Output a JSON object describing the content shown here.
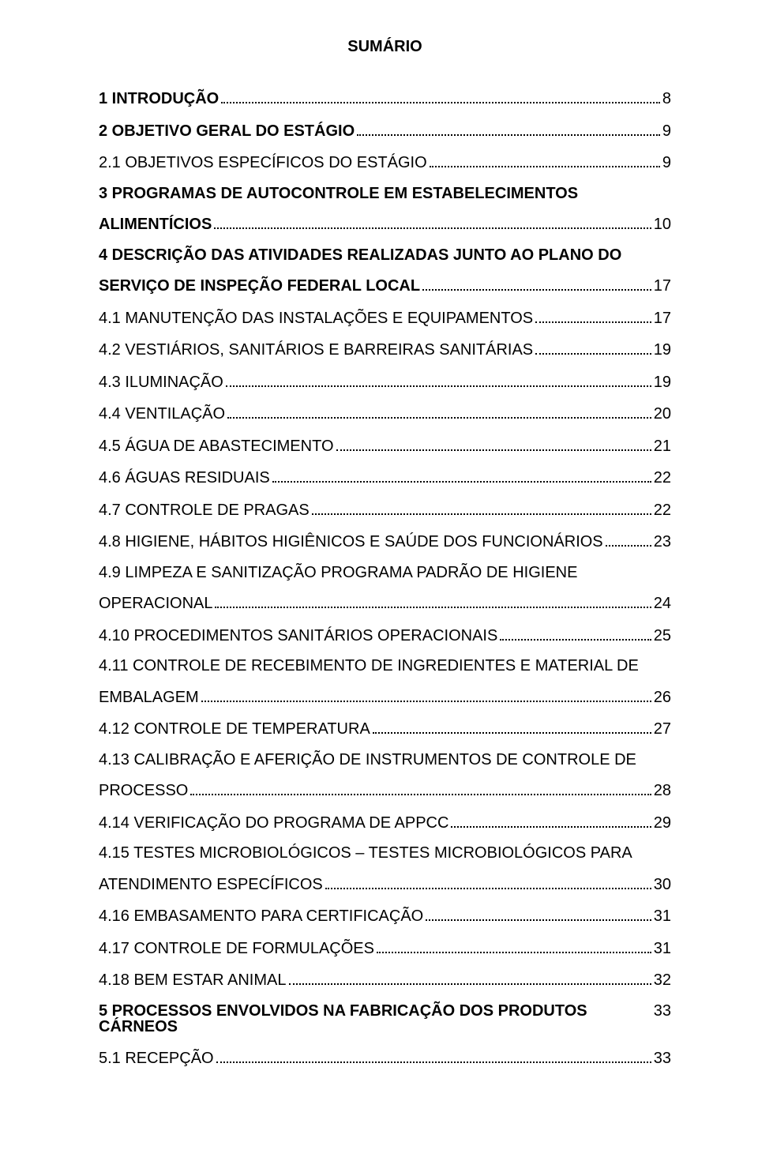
{
  "title": "SUMÁRIO",
  "font": {
    "family": "Arial",
    "title_size_pt": 14,
    "body_size_pt": 14
  },
  "colors": {
    "text": "#000000",
    "background": "#ffffff",
    "leader": "#000000"
  },
  "entries": [
    {
      "label": "1 INTRODUÇÃO",
      "page": "8",
      "bold": true
    },
    {
      "label": "2 OBJETIVO GERAL DO ESTÁGIO",
      "page": "9",
      "bold": true
    },
    {
      "label": "2.1 OBJETIVOS ESPECÍFICOS DO ESTÁGIO",
      "page": "9",
      "bold": false
    },
    {
      "label": "3 PROGRAMAS DE AUTOCONTROLE EM ESTABELECIMENTOS",
      "cont_label": "ALIMENTÍCIOS",
      "page": "10",
      "bold": true,
      "multiline": true
    },
    {
      "label": "4 DESCRIÇÃO DAS ATIVIDADES REALIZADAS JUNTO AO PLANO DO",
      "cont_label": "SERVIÇO DE INSPEÇÃO FEDERAL LOCAL",
      "page": "17",
      "bold": true,
      "multiline": true
    },
    {
      "label": "4.1 MANUTENÇÃO DAS INSTALAÇÕES E EQUIPAMENTOS",
      "page": "17",
      "bold": false
    },
    {
      "label": "4.2 VESTIÁRIOS, SANITÁRIOS E BARREIRAS SANITÁRIAS",
      "page": "19",
      "bold": false
    },
    {
      "label": "4.3 ILUMINAÇÃO",
      "page": "19",
      "bold": false
    },
    {
      "label": "4.4 VENTILAÇÃO",
      "page": "20",
      "bold": false
    },
    {
      "label": "4.5 ÁGUA DE ABASTECIMENTO",
      "page": "21",
      "bold": false
    },
    {
      "label": "4.6 ÁGUAS RESIDUAIS",
      "page": "22",
      "bold": false
    },
    {
      "label": "4.7 CONTROLE DE PRAGAS",
      "page": "22",
      "bold": false
    },
    {
      "label": "4.8 HIGIENE, HÁBITOS HIGIÊNICOS E SAÚDE DOS FUNCIONÁRIOS",
      "page": "23",
      "bold": false
    },
    {
      "label": "4.9 LIMPEZA E SANITIZAÇÃO PROGRAMA PADRÃO DE HIGIENE",
      "cont_label": "OPERACIONAL",
      "page": "24",
      "bold": false,
      "multiline": true
    },
    {
      "label": "4.10 PROCEDIMENTOS SANITÁRIOS OPERACIONAIS",
      "page": "25",
      "bold": false
    },
    {
      "label": "4.11 CONTROLE DE RECEBIMENTO DE INGREDIENTES E MATERIAL DE",
      "cont_label": "EMBALAGEM",
      "page": "26",
      "bold": false,
      "multiline": true
    },
    {
      "label": "4.12 CONTROLE DE TEMPERATURA",
      "page": "27",
      "bold": false
    },
    {
      "label": "4.13 CALIBRAÇÃO E AFERIÇÃO DE INSTRUMENTOS DE CONTROLE DE",
      "cont_label": "PROCESSO",
      "page": "28",
      "bold": false,
      "multiline": true
    },
    {
      "label": "4.14 VERIFICAÇÃO DO PROGRAMA DE APPCC",
      "page": "29",
      "bold": false
    },
    {
      "label": "4.15 TESTES MICROBIOLÓGICOS – TESTES MICROBIOLÓGICOS PARA",
      "cont_label": "ATENDIMENTO ESPECÍFICOS",
      "page": "30",
      "bold": false,
      "multiline": true
    },
    {
      "label": "4.16 EMBASAMENTO PARA CERTIFICAÇÃO",
      "page": "31",
      "bold": false
    },
    {
      "label": "4.17 CONTROLE DE FORMULAÇÕES",
      "page": "31",
      "bold": false
    },
    {
      "label": "4.18 BEM ESTAR ANIMAL",
      "page": "32",
      "bold": false
    },
    {
      "label": "5 PROCESSOS ENVOLVIDOS NA FABRICAÇÃO DOS PRODUTOS CÁRNEOS",
      "page": "33",
      "bold": true,
      "no_leader": true
    },
    {
      "label": "5.1 RECEPÇÃO",
      "page": "33",
      "bold": false
    }
  ]
}
